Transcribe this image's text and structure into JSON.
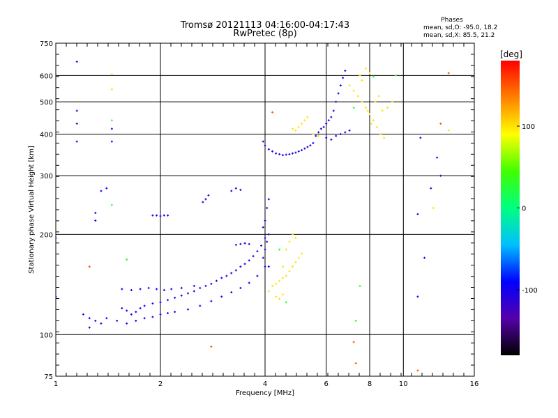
{
  "chart_data": {
    "type": "scatter",
    "title": "Tromsø 20121113 04:16:00-04:17:43",
    "subtitle": "RwPretec (8p)",
    "xlabel": "Frequency [MHz]",
    "ylabel": "Stationary phase Virtual Height [km]",
    "x_scale": "log2",
    "y_scale": "log",
    "xlim": [
      1,
      16
    ],
    "ylim": [
      75,
      750
    ],
    "x_ticks": [
      "1",
      "2",
      "4",
      "6",
      "8",
      "10",
      "16"
    ],
    "y_ticks": [
      "75",
      "100",
      "200",
      "300",
      "400",
      "500",
      "600",
      "750"
    ],
    "grid": true,
    "phase_stats": {
      "title": "Phases",
      "line_o": "mean, sd,O:  -95.0, 18.2",
      "line_x": "mean, sd,X:  85.5, 21.2"
    },
    "colorbar": {
      "label": "[deg]",
      "ticks": [
        "100",
        "0",
        "-100"
      ],
      "range": [
        -180,
        180
      ],
      "colors": [
        "#000000",
        "#5500aa",
        "#0000ff",
        "#00c0ff",
        "#00ff80",
        "#40ff00",
        "#ffff00",
        "#ff8000",
        "#ff0000"
      ]
    },
    "series": [
      {
        "points": [
          [
            1.55,
            120
          ],
          [
            1.6,
            118
          ],
          [
            1.65,
            115
          ],
          [
            1.7,
            117
          ],
          [
            1.75,
            120
          ],
          [
            1.8,
            122
          ],
          [
            1.9,
            124
          ],
          [
            2.0,
            125
          ],
          [
            2.1,
            127
          ],
          [
            2.2,
            129
          ],
          [
            2.3,
            131
          ],
          [
            2.4,
            133
          ],
          [
            2.5,
            135
          ],
          [
            2.6,
            138
          ],
          [
            2.7,
            140
          ],
          [
            2.8,
            142
          ],
          [
            2.9,
            145
          ],
          [
            3.0,
            148
          ],
          [
            3.1,
            150
          ],
          [
            3.2,
            153
          ],
          [
            3.3,
            156
          ],
          [
            3.4,
            160
          ],
          [
            3.5,
            163
          ],
          [
            3.6,
            167
          ],
          [
            3.7,
            172
          ],
          [
            3.8,
            178
          ],
          [
            3.9,
            185
          ],
          [
            4.0,
            195
          ],
          [
            1.5,
            110
          ],
          [
            1.6,
            108
          ],
          [
            1.7,
            110
          ],
          [
            1.8,
            112
          ],
          [
            1.9,
            113
          ],
          [
            2.0,
            115
          ],
          [
            2.1,
            116
          ],
          [
            2.2,
            117
          ],
          [
            2.4,
            119
          ],
          [
            2.6,
            122
          ],
          [
            2.8,
            126
          ],
          [
            3.0,
            130
          ],
          [
            3.2,
            134
          ],
          [
            3.4,
            138
          ],
          [
            3.6,
            143
          ],
          [
            3.8,
            150
          ],
          [
            4.0,
            160
          ],
          [
            1.25,
            112
          ],
          [
            1.3,
            110
          ],
          [
            1.35,
            108
          ],
          [
            1.4,
            112
          ],
          [
            1.2,
            115
          ],
          [
            1.25,
            105
          ],
          [
            1.55,
            137
          ],
          [
            1.65,
            136
          ],
          [
            1.75,
            137
          ],
          [
            1.85,
            138
          ],
          [
            1.95,
            137
          ],
          [
            2.05,
            136
          ],
          [
            2.15,
            137
          ],
          [
            2.3,
            138
          ],
          [
            2.5,
            140
          ],
          [
            3.3,
            186
          ],
          [
            3.4,
            187
          ],
          [
            3.5,
            188
          ],
          [
            3.6,
            187
          ],
          [
            1.9,
            228
          ],
          [
            1.95,
            228
          ],
          [
            2.0,
            227
          ],
          [
            2.05,
            228
          ],
          [
            2.1,
            228
          ],
          [
            2.65,
            250
          ],
          [
            2.7,
            255
          ],
          [
            2.75,
            262
          ],
          [
            3.2,
            270
          ],
          [
            3.3,
            275
          ],
          [
            3.4,
            272
          ],
          [
            4.0,
            180
          ],
          [
            4.05,
            190
          ],
          [
            4.1,
            200
          ],
          [
            3.95,
            210
          ],
          [
            4.0,
            220
          ],
          [
            4.05,
            240
          ],
          [
            4.1,
            255
          ],
          [
            3.95,
            170
          ],
          [
            4.1,
            160
          ],
          [
            1.15,
            470
          ],
          [
            1.15,
            380
          ],
          [
            1.15,
            430
          ],
          [
            1.45,
            415
          ],
          [
            1.45,
            380
          ],
          [
            1.15,
            660
          ],
          [
            1.4,
            275
          ],
          [
            1.35,
            270
          ],
          [
            1.3,
            232
          ],
          [
            1.3,
            220
          ],
          [
            1.0,
            195
          ],
          [
            1.0,
            130
          ],
          [
            3.95,
            380
          ],
          [
            4.0,
            370
          ],
          [
            4.1,
            360
          ],
          [
            4.2,
            355
          ],
          [
            4.3,
            350
          ],
          [
            4.4,
            348
          ],
          [
            4.5,
            346
          ],
          [
            4.6,
            347
          ],
          [
            4.7,
            348
          ],
          [
            4.8,
            350
          ],
          [
            4.9,
            352
          ],
          [
            5.0,
            355
          ],
          [
            5.1,
            358
          ],
          [
            5.2,
            362
          ],
          [
            5.3,
            366
          ],
          [
            5.4,
            370
          ],
          [
            5.5,
            376
          ],
          [
            5.6,
            395
          ],
          [
            5.7,
            405
          ],
          [
            5.8,
            415
          ],
          [
            5.9,
            420
          ],
          [
            6.0,
            430
          ],
          [
            6.1,
            440
          ],
          [
            6.2,
            450
          ],
          [
            6.3,
            470
          ],
          [
            6.4,
            500
          ],
          [
            6.5,
            530
          ],
          [
            6.6,
            560
          ],
          [
            6.7,
            590
          ],
          [
            6.8,
            620
          ],
          [
            6.0,
            390
          ],
          [
            6.2,
            385
          ],
          [
            6.4,
            395
          ],
          [
            6.6,
            400
          ],
          [
            6.8,
            405
          ],
          [
            7.0,
            410
          ],
          [
            11.0,
            130
          ],
          [
            11.5,
            170
          ],
          [
            11.2,
            390
          ],
          [
            11.0,
            230
          ],
          [
            12.5,
            340
          ],
          [
            12.8,
            300
          ],
          [
            12.0,
            275
          ]
        ],
        "phase": -100
      },
      {
        "points": [
          [
            4.2,
            140
          ],
          [
            4.3,
            142
          ],
          [
            4.4,
            145
          ],
          [
            4.5,
            148
          ],
          [
            4.6,
            150
          ],
          [
            4.7,
            155
          ],
          [
            4.8,
            160
          ],
          [
            4.9,
            165
          ],
          [
            5.0,
            170
          ],
          [
            5.1,
            175
          ],
          [
            4.5,
            160
          ],
          [
            4.6,
            180
          ],
          [
            4.7,
            190
          ],
          [
            4.8,
            200
          ],
          [
            4.9,
            195
          ],
          [
            4.3,
            130
          ],
          [
            4.4,
            128
          ],
          [
            4.5,
            132
          ],
          [
            4.1,
            135
          ],
          [
            5.0,
            420
          ],
          [
            5.1,
            430
          ],
          [
            5.2,
            440
          ],
          [
            5.3,
            450
          ],
          [
            4.8,
            415
          ],
          [
            4.9,
            410
          ],
          [
            5.5,
            400
          ],
          [
            5.7,
            395
          ],
          [
            7.0,
            560
          ],
          [
            7.2,
            540
          ],
          [
            7.4,
            520
          ],
          [
            7.6,
            500
          ],
          [
            7.8,
            480
          ],
          [
            8.0,
            460
          ],
          [
            8.2,
            440
          ],
          [
            8.4,
            420
          ],
          [
            8.6,
            400
          ],
          [
            8.8,
            390
          ],
          [
            7.5,
            600
          ],
          [
            7.8,
            630
          ],
          [
            8.0,
            610
          ],
          [
            7.6,
            580
          ],
          [
            7.9,
            470
          ],
          [
            8.1,
            430
          ],
          [
            8.3,
            500
          ],
          [
            8.5,
            520
          ],
          [
            8.7,
            470
          ],
          [
            9.0,
            480
          ],
          [
            9.3,
            500
          ],
          [
            13.5,
            410
          ],
          [
            12.2,
            240
          ],
          [
            1.45,
            545
          ],
          [
            1.45,
            605
          ]
        ],
        "phase": 100
      },
      {
        "points": [
          [
            1.45,
            440
          ],
          [
            1.45,
            245
          ],
          [
            1.6,
            168
          ],
          [
            4.4,
            180
          ],
          [
            4.6,
            125
          ],
          [
            7.3,
            110
          ],
          [
            7.5,
            140
          ],
          [
            9.5,
            600
          ],
          [
            8.2,
            595
          ],
          [
            7.2,
            480
          ]
        ],
        "phase": 30
      },
      {
        "points": [
          [
            4.2,
            465
          ],
          [
            2.8,
            92
          ],
          [
            1.25,
            160
          ],
          [
            12.8,
            430
          ],
          [
            13.5,
            610
          ],
          [
            7.3,
            82
          ],
          [
            11.0,
            78
          ],
          [
            7.2,
            95
          ]
        ],
        "phase": 150
      }
    ]
  }
}
